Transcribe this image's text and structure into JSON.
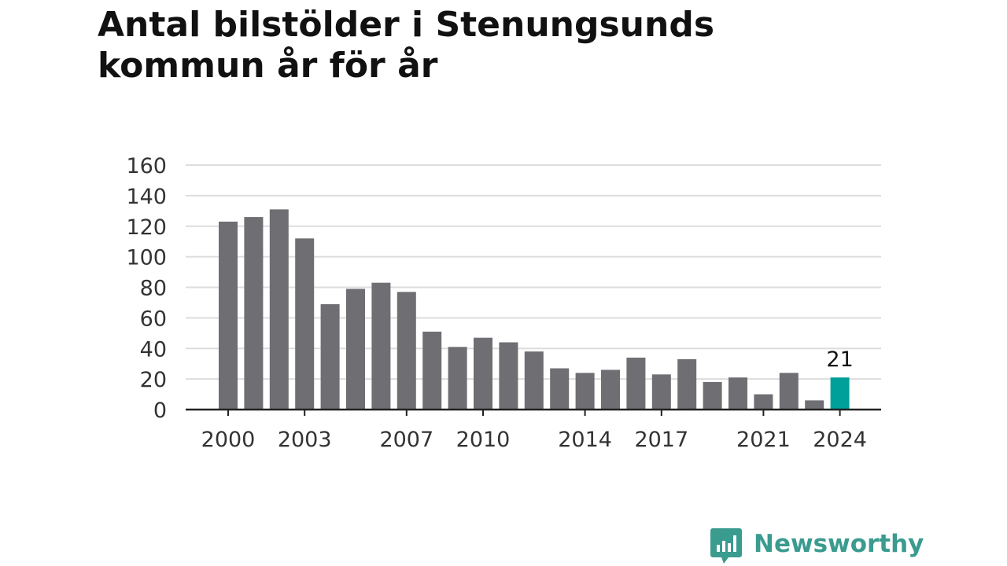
{
  "title_lines": [
    "Antal bilstölder i Stenungsunds",
    "kommun år för år"
  ],
  "logo": {
    "text": "Newsworthy",
    "color": "#3a9b8f",
    "icon": "newsworthy-chat-bars-icon"
  },
  "colors": {
    "bar": "#6f6e73",
    "highlight": "#00a09a",
    "grid": "#dddddd",
    "axis": "#222222"
  },
  "chart_data": {
    "type": "bar",
    "categories": [
      "2000",
      "2001",
      "2002",
      "2003",
      "2004",
      "2005",
      "2006",
      "2007",
      "2008",
      "2009",
      "2010",
      "2011",
      "2012",
      "2013",
      "2014",
      "2015",
      "2016",
      "2017",
      "2018",
      "2019",
      "2020",
      "2021",
      "2022",
      "2023",
      "2024"
    ],
    "values": [
      123,
      126,
      131,
      112,
      69,
      79,
      83,
      77,
      51,
      41,
      47,
      44,
      38,
      27,
      24,
      26,
      34,
      23,
      33,
      18,
      21,
      10,
      24,
      6,
      21
    ],
    "x_tick_labels": [
      "2000",
      "2003",
      "2007",
      "2010",
      "2014",
      "2017",
      "2021",
      "2024"
    ],
    "y_ticks": [
      0,
      20,
      40,
      60,
      80,
      100,
      120,
      140,
      160
    ],
    "ylim": [
      0,
      160
    ],
    "grid": true,
    "highlight": {
      "category": "2024",
      "label": "21"
    }
  }
}
